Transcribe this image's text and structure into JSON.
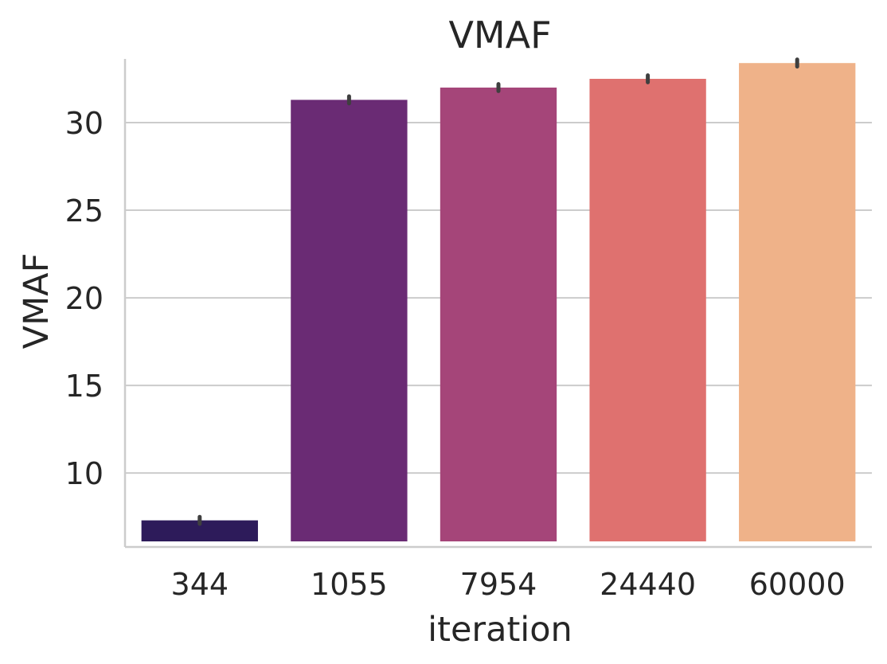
{
  "chart_data": {
    "type": "bar",
    "title": "VMAF",
    "xlabel": "iteration",
    "ylabel": "VMAF",
    "categories": [
      "344",
      "1055",
      "7954",
      "24440",
      "60000"
    ],
    "values": [
      7.3,
      31.3,
      32.0,
      32.5,
      33.4
    ],
    "error_bars": [
      [
        7.1,
        7.5
      ],
      [
        31.1,
        31.5
      ],
      [
        31.8,
        32.2
      ],
      [
        32.3,
        32.7
      ],
      [
        33.2,
        33.6
      ]
    ],
    "ylim": [
      6.1,
      33.5
    ],
    "yticks": [
      10,
      15,
      20,
      25,
      30
    ],
    "grid": "horizontal",
    "colors": [
      "#2d1b5a",
      "#6a2b74",
      "#a54579",
      "#df716f",
      "#efb289"
    ],
    "error_bar_color": "#3f3f3f",
    "grid_color": "#cccccc",
    "spine_color": "#cccccc"
  }
}
